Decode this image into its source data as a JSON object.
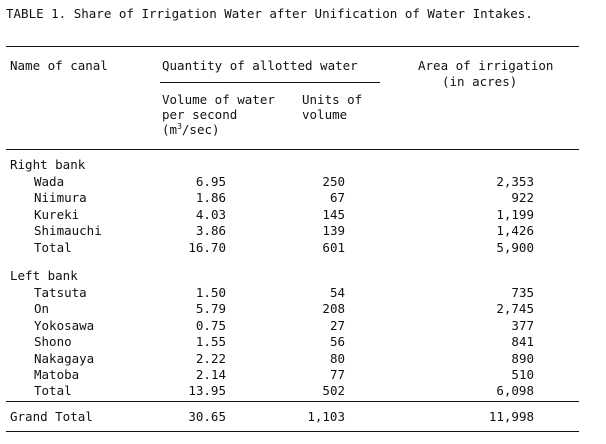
{
  "document": {
    "title": "TABLE 1.  Share of Irrigation Water after Unification of Water Intakes.",
    "headers": {
      "name_of_canal": "Name of canal",
      "quantity": "Quantity of allotted water",
      "area_line1": "Area of irrigation",
      "area_line2": "(in acres)",
      "volume_line1": "Volume of water",
      "volume_line2": "per second",
      "volume_line3_prefix": "(m",
      "volume_line3_sup": "3",
      "volume_line3_suffix": "/sec)",
      "units_line1": "Units of",
      "units_line2": "volume"
    },
    "right_bank": {
      "label": "Right bank",
      "rows": [
        {
          "name": "Wada",
          "volume": "6.95",
          "units": "250",
          "area": "2,353"
        },
        {
          "name": "Niimura",
          "volume": "1.86",
          "units": "67",
          "area": "922"
        },
        {
          "name": "Kureki",
          "volume": "4.03",
          "units": "145",
          "area": "1,199"
        },
        {
          "name": "Shimauchi",
          "volume": "3.86",
          "units": "139",
          "area": "1,426"
        },
        {
          "name": "Total",
          "volume": "16.70",
          "units": "601",
          "area": "5,900"
        }
      ]
    },
    "left_bank": {
      "label": "Left bank",
      "rows": [
        {
          "name": "Tatsuta",
          "volume": "1.50",
          "units": "54",
          "area": "735"
        },
        {
          "name": "On",
          "volume": "5.79",
          "units": "208",
          "area": "2,745"
        },
        {
          "name": "Yokosawa",
          "volume": "0.75",
          "units": "27",
          "area": "377"
        },
        {
          "name": "Shono",
          "volume": "1.55",
          "units": "56",
          "area": "841"
        },
        {
          "name": "Nakagaya",
          "volume": "2.22",
          "units": "80",
          "area": "890"
        },
        {
          "name": "Matoba",
          "volume": "2.14",
          "units": "77",
          "area": "510"
        },
        {
          "name": "Total",
          "volume": "13.95",
          "units": "502",
          "area": "6,098"
        }
      ]
    },
    "grand_total": {
      "label": "Grand Total",
      "volume": "30.65",
      "units": "1,103",
      "area": "11,998"
    }
  }
}
